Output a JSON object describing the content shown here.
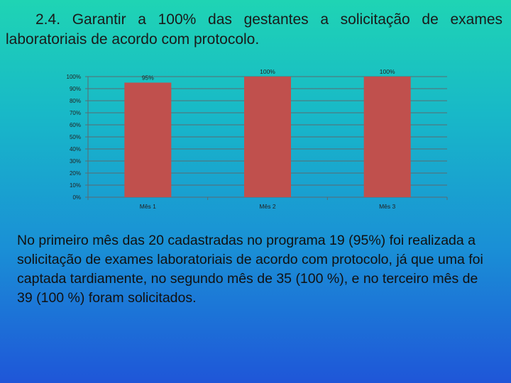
{
  "slide": {
    "title": "2.4. Garantir a 100% das gestantes a solicitação de exames laboratoriais de acordo com protocolo.",
    "body": "No primeiro mês das 20 cadastradas no programa 19 (95%) foi realizada a solicitação de exames laboratoriais de acordo com protocolo, já que uma foi captada tardiamente, no segundo mês de 35 (100 %), e no terceiro mês de 39 (100 %) foram solicitados."
  },
  "chart_data": {
    "type": "bar",
    "categories": [
      "Mês 1",
      "Mês 2",
      "Mês 3"
    ],
    "values": [
      95,
      100,
      100
    ],
    "data_labels": [
      "95%",
      "100%",
      "100%"
    ],
    "y_ticks": [
      "0%",
      "10%",
      "20%",
      "30%",
      "40%",
      "50%",
      "60%",
      "70%",
      "80%",
      "90%",
      "100%"
    ],
    "ylim": [
      0,
      100
    ],
    "grid": true,
    "bar_color": "#c0504d",
    "title": "",
    "xlabel": "",
    "ylabel": ""
  }
}
